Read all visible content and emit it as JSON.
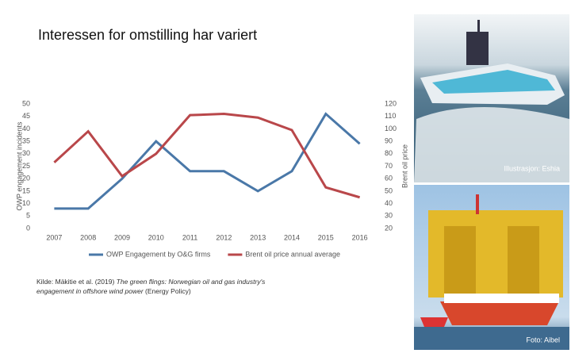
{
  "chart_data": {
    "type": "line",
    "title": "Interessen for omstilling har variert",
    "categories": [
      "2007",
      "2008",
      "2009",
      "2010",
      "2011",
      "2012",
      "2013",
      "2014",
      "2015",
      "2016"
    ],
    "series": [
      {
        "name": "OWP Engagement by O&G firms",
        "color": "#4a78a8",
        "values": [
          8,
          8,
          20,
          35,
          23,
          23,
          15,
          23,
          46,
          34
        ]
      },
      {
        "name": "Brent oil price annual average",
        "color": "#b9474a",
        "axis": "y2",
        "values": [
          73,
          98,
          62,
          80,
          111,
          112,
          109,
          99,
          53,
          45
        ]
      }
    ],
    "y_label": "OWP engagement incidents",
    "y2_label": "Brent oil price",
    "ylim": [
      0,
      50
    ],
    "yticks": [
      0,
      5,
      10,
      15,
      20,
      25,
      30,
      35,
      40,
      45,
      50
    ],
    "y2lim": [
      20,
      120
    ],
    "y2ticks": [
      20,
      30,
      40,
      50,
      60,
      70,
      80,
      90,
      100,
      110,
      120
    ],
    "grid": false,
    "legend": "bottom"
  },
  "source": {
    "text": "Kilde: Mäkitie et al. (2019)",
    "title": "The green flings: Norwegian oil and gas industry's engagement in offshore wind power",
    "publication": "(Energy Policy)"
  },
  "photos": [
    {
      "caption": "Illustrasjon: Eshia"
    },
    {
      "caption": "Foto: Aibel"
    }
  ]
}
